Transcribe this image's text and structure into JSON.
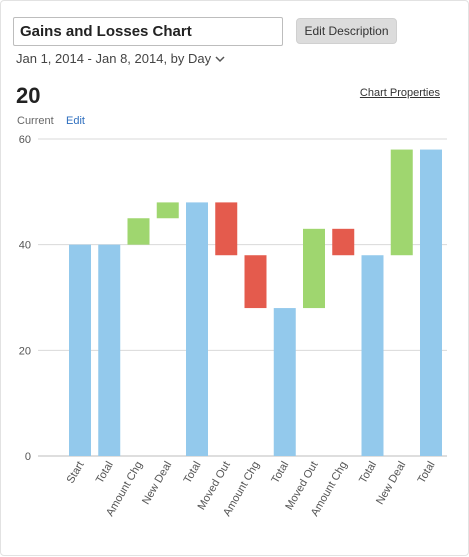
{
  "header": {
    "title_value": "Gains and Losses Chart",
    "edit_description_label": "Edit Description",
    "date_range": "Jan 1, 2014 - Jan 8, 2014, by Day",
    "big_value": "20",
    "current_label": "Current",
    "edit_link_label": "Edit",
    "chart_properties_label": "Chart Properties"
  },
  "colors": {
    "total": "#93c9ec",
    "gain": "#9fd66f",
    "loss": "#e45b4d",
    "grid": "#d9d9d9"
  },
  "chart_data": {
    "type": "bar",
    "subtype": "waterfall",
    "ylim": [
      0,
      60
    ],
    "yticks": [
      0,
      20,
      40,
      60
    ],
    "grid": true,
    "categories": [
      "Start",
      "Total",
      "Amount Chg",
      "New Deal",
      "Total",
      "Moved Out",
      "Amount Chg",
      "Total",
      "Moved Out",
      "Amount Chg",
      "Total",
      "New Deal",
      "Total"
    ],
    "bars": [
      {
        "label": "Start",
        "kind": "total",
        "from": 0,
        "to": 40
      },
      {
        "label": "Total",
        "kind": "total",
        "from": 0,
        "to": 40
      },
      {
        "label": "Amount Chg",
        "kind": "gain",
        "from": 40,
        "to": 45
      },
      {
        "label": "New Deal",
        "kind": "gain",
        "from": 45,
        "to": 48
      },
      {
        "label": "Total",
        "kind": "total",
        "from": 0,
        "to": 48
      },
      {
        "label": "Moved Out",
        "kind": "loss",
        "from": 48,
        "to": 38
      },
      {
        "label": "Amount Chg",
        "kind": "loss",
        "from": 38,
        "to": 28
      },
      {
        "label": "Total",
        "kind": "total",
        "from": 0,
        "to": 28
      },
      {
        "label": "Moved Out",
        "kind": "gain",
        "from": 28,
        "to": 43
      },
      {
        "label": "Amount Chg",
        "kind": "loss",
        "from": 43,
        "to": 38
      },
      {
        "label": "Total",
        "kind": "total",
        "from": 0,
        "to": 38
      },
      {
        "label": "New Deal",
        "kind": "gain",
        "from": 38,
        "to": 58
      },
      {
        "label": "Total",
        "kind": "total",
        "from": 0,
        "to": 58
      }
    ]
  }
}
